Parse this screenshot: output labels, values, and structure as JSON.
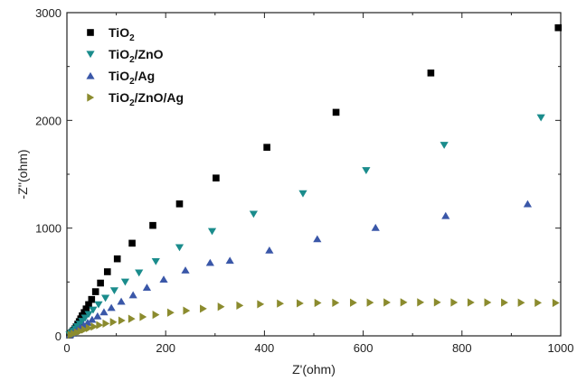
{
  "chart_data": {
    "type": "scatter",
    "xlabel": "Z'(ohm)",
    "ylabel": "-Z''(ohm)",
    "xlim": [
      0,
      1000
    ],
    "ylim": [
      0,
      3000
    ],
    "x_ticks": [
      0,
      200,
      400,
      600,
      800,
      1000
    ],
    "y_ticks": [
      0,
      1000,
      2000,
      3000
    ],
    "legend_position": "top-left",
    "grid": false,
    "series": [
      {
        "name_base": "TiO",
        "name_sub": "2",
        "name_rest": "",
        "marker": "square",
        "color": "#000000",
        "points": [
          [
            4,
            8
          ],
          [
            7,
            18
          ],
          [
            10,
            32
          ],
          [
            13,
            48
          ],
          [
            16,
            66
          ],
          [
            19,
            86
          ],
          [
            22,
            108
          ],
          [
            25,
            132
          ],
          [
            28,
            158
          ],
          [
            31,
            186
          ],
          [
            35,
            216
          ],
          [
            39,
            250
          ],
          [
            44,
            290
          ],
          [
            50,
            338
          ],
          [
            58,
            410
          ],
          [
            68,
            490
          ],
          [
            82,
            595
          ],
          [
            102,
            715
          ],
          [
            132,
            860
          ],
          [
            174,
            1025
          ],
          [
            228,
            1225
          ],
          [
            302,
            1465
          ],
          [
            405,
            1750
          ],
          [
            545,
            2075
          ],
          [
            737,
            2440
          ],
          [
            995,
            2860
          ]
        ]
      },
      {
        "name_base": "TiO",
        "name_sub": "2",
        "name_rest": "/ZnO",
        "marker": "triangle-down",
        "color": "#1A8C8C",
        "points": [
          [
            5,
            10
          ],
          [
            9,
            26
          ],
          [
            13,
            44
          ],
          [
            17,
            64
          ],
          [
            21,
            86
          ],
          [
            26,
            110
          ],
          [
            31,
            136
          ],
          [
            37,
            166
          ],
          [
            44,
            200
          ],
          [
            53,
            240
          ],
          [
            64,
            290
          ],
          [
            78,
            350
          ],
          [
            96,
            420
          ],
          [
            118,
            500
          ],
          [
            146,
            585
          ],
          [
            180,
            690
          ],
          [
            228,
            820
          ],
          [
            294,
            970
          ],
          [
            378,
            1130
          ],
          [
            478,
            1320
          ],
          [
            606,
            1535
          ],
          [
            764,
            1770
          ],
          [
            960,
            2025
          ]
        ]
      },
      {
        "name_base": "TiO",
        "name_sub": "2",
        "name_rest": "/Ag",
        "marker": "triangle-up",
        "color": "#3A57A8",
        "points": [
          [
            6,
            10
          ],
          [
            11,
            24
          ],
          [
            16,
            40
          ],
          [
            21,
            58
          ],
          [
            27,
            78
          ],
          [
            34,
            100
          ],
          [
            42,
            124
          ],
          [
            51,
            152
          ],
          [
            62,
            184
          ],
          [
            75,
            222
          ],
          [
            90,
            262
          ],
          [
            110,
            320
          ],
          [
            134,
            380
          ],
          [
            162,
            450
          ],
          [
            196,
            525
          ],
          [
            240,
            610
          ],
          [
            290,
            680
          ],
          [
            330,
            700
          ],
          [
            410,
            795
          ],
          [
            507,
            900
          ],
          [
            625,
            1005
          ],
          [
            767,
            1115
          ],
          [
            933,
            1225
          ]
        ]
      },
      {
        "name_base": "TiO",
        "name_sub": "2",
        "name_rest": "/ZnO/Ag",
        "marker": "triangle-right",
        "color": "#8B8B2E",
        "points": [
          [
            8,
            10
          ],
          [
            14,
            20
          ],
          [
            21,
            32
          ],
          [
            28,
            44
          ],
          [
            36,
            58
          ],
          [
            45,
            72
          ],
          [
            55,
            86
          ],
          [
            66,
            100
          ],
          [
            79,
            114
          ],
          [
            94,
            128
          ],
          [
            111,
            142
          ],
          [
            131,
            158
          ],
          [
            154,
            176
          ],
          [
            180,
            196
          ],
          [
            210,
            216
          ],
          [
            242,
            234
          ],
          [
            276,
            252
          ],
          [
            312,
            270
          ],
          [
            350,
            282
          ],
          [
            392,
            294
          ],
          [
            432,
            300
          ],
          [
            472,
            302
          ],
          [
            508,
            306
          ],
          [
            544,
            307
          ],
          [
            580,
            308
          ],
          [
            614,
            309
          ],
          [
            648,
            310
          ],
          [
            682,
            311
          ],
          [
            716,
            311
          ],
          [
            750,
            311
          ],
          [
            784,
            310
          ],
          [
            818,
            310
          ],
          [
            852,
            310
          ],
          [
            886,
            309
          ],
          [
            920,
            308
          ],
          [
            954,
            307
          ],
          [
            990,
            306
          ]
        ]
      }
    ]
  }
}
